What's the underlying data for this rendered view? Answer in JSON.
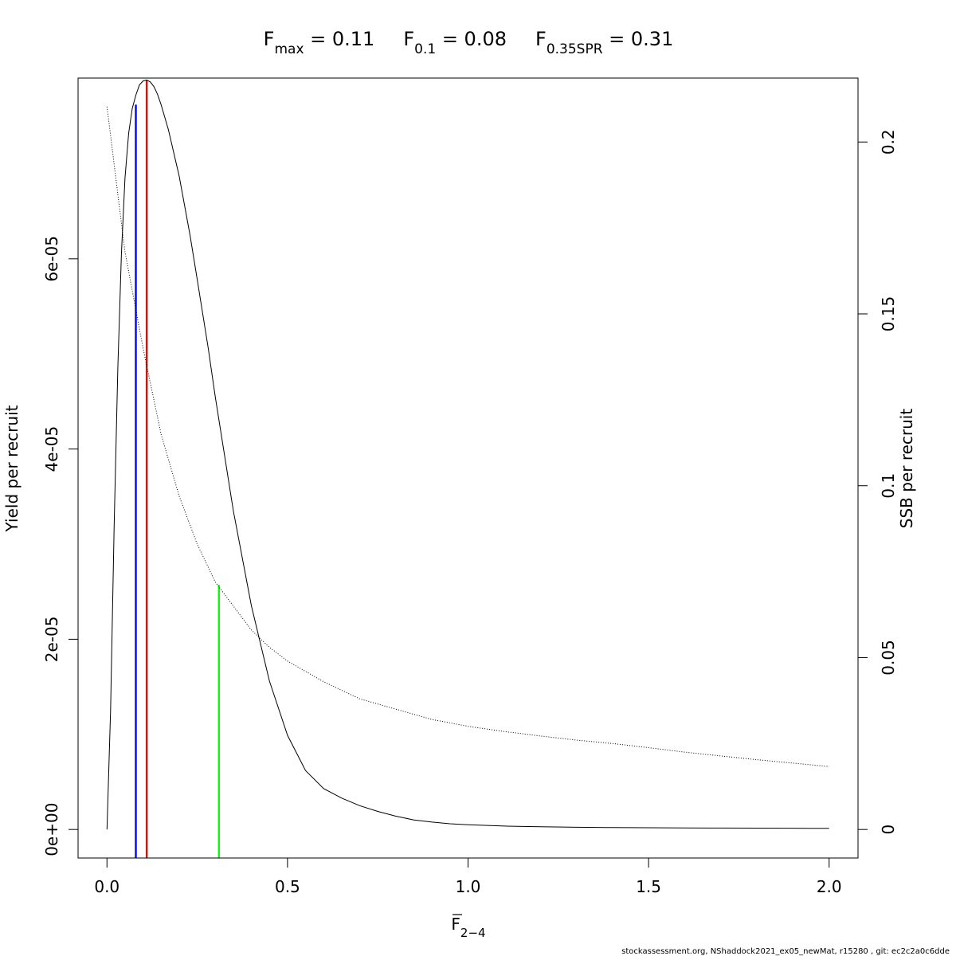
{
  "chart_data": {
    "type": "line",
    "title_parts": [
      {
        "base": "F",
        "sub": "max",
        "value": " = 0.11"
      },
      {
        "base": "F",
        "sub": "0.1",
        "value": " = 0.08"
      },
      {
        "base": "F",
        "sub": "0.35SPR",
        "value": " = 0.31"
      }
    ],
    "xlabel": {
      "base": "F",
      "sub": "2−4"
    },
    "ylabel_left": "Yield per recruit",
    "ylabel_right": "SSB per recruit",
    "footer": "stockassessment.org, NShaddock2021_ex05_newMat, r15280 , git: ec2c2a0c6dde",
    "xlim": [
      -0.08,
      2.08
    ],
    "ylim_left": [
      -3e-06,
      7.9e-05
    ],
    "ylim_right": [
      -0.0083,
      0.2186
    ],
    "x_ticks": [
      {
        "value": 0.0,
        "label": "0.0"
      },
      {
        "value": 0.5,
        "label": "0.5"
      },
      {
        "value": 1.0,
        "label": "1.0"
      },
      {
        "value": 1.5,
        "label": "1.5"
      },
      {
        "value": 2.0,
        "label": "2.0"
      }
    ],
    "y_left_ticks": [
      {
        "value": 0,
        "label": "0e+00"
      },
      {
        "value": 2e-05,
        "label": "2e-05"
      },
      {
        "value": 4e-05,
        "label": "4e-05"
      },
      {
        "value": 6e-05,
        "label": "6e-05"
      }
    ],
    "y_right_ticks": [
      {
        "value": 0,
        "label": "0"
      },
      {
        "value": 0.05,
        "label": "0.05"
      },
      {
        "value": 0.1,
        "label": "0.1"
      },
      {
        "value": 0.15,
        "label": "0.15"
      },
      {
        "value": 0.2,
        "label": "0.2"
      }
    ],
    "series": [
      {
        "axis": "left",
        "style": "solid",
        "color": "#000000",
        "x": [
          0,
          0.01,
          0.02,
          0.03,
          0.04,
          0.05,
          0.06,
          0.07,
          0.08,
          0.09,
          0.1,
          0.11,
          0.12,
          0.13,
          0.14,
          0.15,
          0.17,
          0.2,
          0.23,
          0.25,
          0.28,
          0.3,
          0.35,
          0.4,
          0.45,
          0.5,
          0.55,
          0.6,
          0.65,
          0.7,
          0.75,
          0.8,
          0.85,
          0.9,
          0.95,
          1.0,
          1.1,
          1.2,
          1.3,
          1.4,
          1.5,
          1.6,
          1.7,
          1.8,
          1.9,
          2.0
        ],
        "y": [
          0,
          1.25e-05,
          3.2e-05,
          4.85e-05,
          6.05e-05,
          6.85e-05,
          7.32e-05,
          7.58e-05,
          7.72e-05,
          7.83e-05,
          7.87e-05,
          7.88e-05,
          7.86e-05,
          7.81e-05,
          7.73e-05,
          7.62e-05,
          7.36e-05,
          6.87e-05,
          6.25e-05,
          5.78e-05,
          5.07e-05,
          4.55e-05,
          3.35e-05,
          2.35e-05,
          1.56e-05,
          9.9e-06,
          6.2e-06,
          4.3e-06,
          3.3e-06,
          2.5e-06,
          1.9e-06,
          1.4e-06,
          1e-06,
          7.8e-07,
          6e-07,
          5e-07,
          3.6e-07,
          2.8e-07,
          2.3e-07,
          2e-07,
          1.8e-07,
          1.6e-07,
          1.5e-07,
          1.4e-07,
          1.3e-07,
          1.2e-07
        ]
      },
      {
        "axis": "right",
        "style": "dotted",
        "color": "#000000",
        "x": [
          0,
          0.05,
          0.1,
          0.15,
          0.2,
          0.25,
          0.3,
          0.35,
          0.4,
          0.45,
          0.5,
          0.6,
          0.7,
          0.8,
          0.9,
          1.0,
          1.1,
          1.2,
          1.3,
          1.4,
          1.5,
          1.6,
          1.7,
          1.8,
          1.9,
          2.0
        ],
        "y": [
          0.2103,
          0.168,
          0.14,
          0.115,
          0.097,
          0.083,
          0.072,
          0.065,
          0.058,
          0.053,
          0.049,
          0.043,
          0.038,
          0.035,
          0.032,
          0.03,
          0.0285,
          0.0272,
          0.026,
          0.025,
          0.0238,
          0.0225,
          0.0214,
          0.0203,
          0.0193,
          0.0183
        ]
      }
    ],
    "ref_lines": [
      {
        "name": "F0.1",
        "x": 0.08,
        "y_top_left": 7.62e-05,
        "color": "#0000ff"
      },
      {
        "name": "Fmax",
        "x": 0.11,
        "y_top_left": 7.88e-05,
        "color": "#ff0000"
      },
      {
        "name": "F0.35SPR",
        "x": 0.31,
        "y_top_left": 2.57e-05,
        "color": "#00ff00"
      }
    ]
  }
}
